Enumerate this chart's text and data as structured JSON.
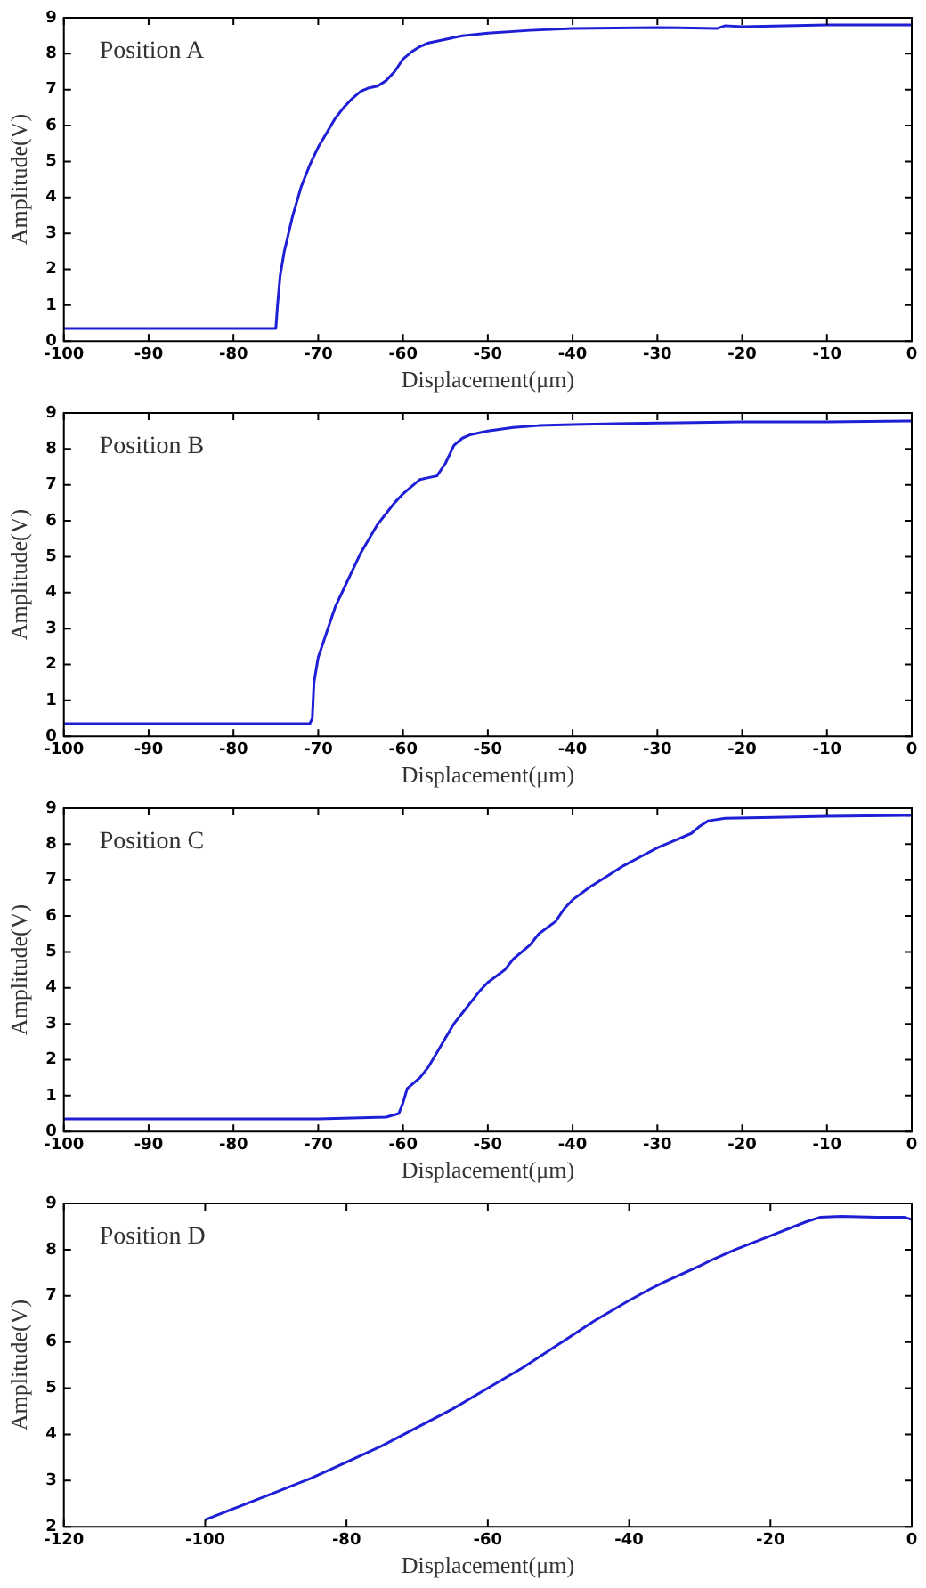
{
  "chart_data": [
    {
      "type": "line",
      "annotations": [
        "Position A"
      ],
      "xlabel": "Displacement(μm)",
      "ylabel": "Amplitude(V)",
      "xlim": [
        -100,
        0
      ],
      "xticks": [
        -100,
        -90,
        -80,
        -70,
        -60,
        -50,
        -40,
        -30,
        -20,
        -10,
        0
      ],
      "ylim": [
        0,
        9
      ],
      "yticks": [
        0,
        1,
        2,
        3,
        4,
        5,
        6,
        7,
        8,
        9
      ],
      "marker": "none",
      "series": [
        {
          "color": "#1f1fd6",
          "x": [
            -100,
            -75,
            -74.8,
            -74.5,
            -74,
            -73,
            -72,
            -71,
            -70,
            -69,
            -68,
            -67,
            -66,
            -65,
            -64,
            -63,
            -62,
            -61,
            -60,
            -59,
            -58,
            -57,
            -55,
            -53,
            -50,
            -45,
            -40,
            -30,
            -23,
            -22,
            -20,
            -10,
            0
          ],
          "values": [
            0.35,
            0.35,
            1.0,
            1.8,
            2.5,
            3.5,
            4.3,
            4.9,
            5.4,
            5.8,
            6.2,
            6.5,
            6.75,
            6.95,
            7.05,
            7.1,
            7.25,
            7.5,
            7.85,
            8.05,
            8.2,
            8.3,
            8.4,
            8.5,
            8.57,
            8.65,
            8.7,
            8.73,
            8.7,
            8.78,
            8.75,
            8.8,
            8.8
          ]
        }
      ]
    },
    {
      "type": "line",
      "annotations": [
        "Position B"
      ],
      "xlabel": "Displacement(μm)",
      "ylabel": "Amplitude(V)",
      "xlim": [
        -100,
        0
      ],
      "xticks": [
        -100,
        -90,
        -80,
        -70,
        -60,
        -50,
        -40,
        -30,
        -20,
        -10,
        0
      ],
      "ylim": [
        0,
        9
      ],
      "yticks": [
        0,
        1,
        2,
        3,
        4,
        5,
        6,
        7,
        8,
        9
      ],
      "marker": "none",
      "series": [
        {
          "color": "#1f1fd6",
          "x": [
            -100,
            -71,
            -70.7,
            -70.5,
            -70,
            -69,
            -68,
            -67,
            -66,
            -65,
            -64,
            -63,
            -62,
            -61,
            -60,
            -59,
            -58,
            -57,
            -56,
            -55,
            -54,
            -53,
            -52,
            -50,
            -47,
            -44,
            -40,
            -35,
            -30,
            -20,
            -10,
            0
          ],
          "values": [
            0.35,
            0.35,
            0.5,
            1.5,
            2.2,
            2.9,
            3.6,
            4.1,
            4.6,
            5.1,
            5.5,
            5.9,
            6.2,
            6.5,
            6.75,
            6.95,
            7.15,
            7.2,
            7.25,
            7.6,
            8.1,
            8.3,
            8.4,
            8.5,
            8.6,
            8.65,
            8.68,
            8.7,
            8.72,
            8.75,
            8.75,
            8.78
          ]
        }
      ]
    },
    {
      "type": "line",
      "annotations": [
        "Position C"
      ],
      "xlabel": "Displacement(μm)",
      "ylabel": "Amplitude(V)",
      "xlim": [
        -100,
        0
      ],
      "xticks": [
        -100,
        -90,
        -80,
        -70,
        -60,
        -50,
        -40,
        -30,
        -20,
        -10,
        0
      ],
      "ylim": [
        0,
        9
      ],
      "yticks": [
        0,
        1,
        2,
        3,
        4,
        5,
        6,
        7,
        8,
        9
      ],
      "marker": "none",
      "series": [
        {
          "color": "#1f1fd6",
          "x": [
            -100,
            -80,
            -70,
            -62,
            -60.5,
            -60,
            -59.5,
            -58,
            -57,
            -56,
            -55,
            -54,
            -53,
            -52,
            -51,
            -50,
            -48,
            -47,
            -45,
            -44,
            -42,
            -41,
            -40,
            -38,
            -36,
            -34,
            -32,
            -30,
            -28,
            -26,
            -25,
            -24,
            -22,
            -15,
            -10,
            0
          ],
          "values": [
            0.35,
            0.35,
            0.35,
            0.4,
            0.5,
            0.8,
            1.2,
            1.5,
            1.8,
            2.2,
            2.6,
            3.0,
            3.3,
            3.6,
            3.9,
            4.15,
            4.5,
            4.8,
            5.2,
            5.5,
            5.85,
            6.2,
            6.45,
            6.8,
            7.1,
            7.4,
            7.65,
            7.9,
            8.1,
            8.3,
            8.5,
            8.65,
            8.72,
            8.75,
            8.78,
            8.8
          ]
        }
      ]
    },
    {
      "type": "line",
      "annotations": [
        "Position D"
      ],
      "xlabel": "Displacement(μm)",
      "ylabel": "Amplitude(V)",
      "xlim": [
        -120,
        0
      ],
      "xticks": [
        -120,
        -100,
        -80,
        -60,
        -40,
        -20,
        0
      ],
      "ylim": [
        2,
        9
      ],
      "yticks": [
        2,
        3,
        4,
        5,
        6,
        7,
        8,
        9
      ],
      "marker": "none",
      "series": [
        {
          "color": "#1f1fd6",
          "x": [
            -100,
            -95,
            -90,
            -85,
            -80,
            -75,
            -70,
            -65,
            -60,
            -55,
            -50,
            -49.5,
            -45,
            -40,
            -37,
            -35,
            -30,
            -28,
            -25,
            -20,
            -15,
            -13,
            -10,
            -5,
            -1,
            0
          ],
          "values": [
            2.15,
            2.45,
            2.75,
            3.05,
            3.4,
            3.75,
            4.15,
            4.55,
            5.0,
            5.45,
            5.95,
            6.0,
            6.45,
            6.9,
            7.15,
            7.3,
            7.65,
            7.8,
            8.0,
            8.3,
            8.6,
            8.7,
            8.72,
            8.7,
            8.7,
            8.65
          ]
        }
      ]
    }
  ]
}
